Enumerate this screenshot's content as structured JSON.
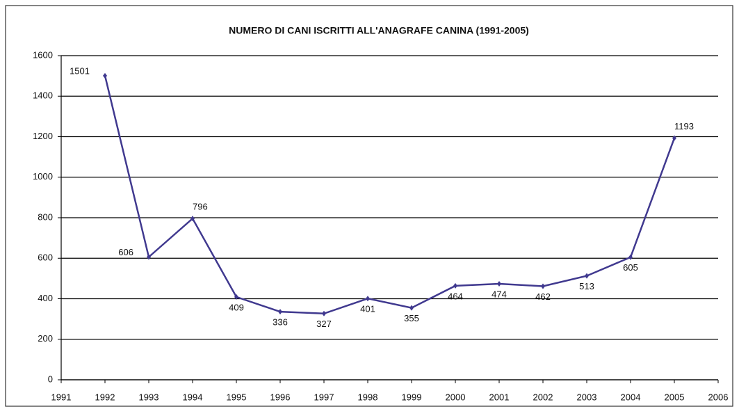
{
  "chart_data": {
    "type": "line",
    "title": "NUMERO DI CANI ISCRITTI ALL'ANAGRAFE CANINA (1991-2005)",
    "x": [
      1992,
      1993,
      1994,
      1995,
      1996,
      1997,
      1998,
      1999,
      2000,
      2001,
      2002,
      2003,
      2004,
      2005
    ],
    "series": [
      {
        "name": "Cani iscritti",
        "color": "#40398f",
        "values": [
          1501,
          606,
          796,
          409,
          336,
          327,
          401,
          355,
          464,
          474,
          462,
          513,
          605,
          1193
        ]
      }
    ],
    "xlim": [
      1991,
      2006
    ],
    "xticks": [
      1991,
      1992,
      1993,
      1994,
      1995,
      1996,
      1997,
      1998,
      1999,
      2000,
      2001,
      2002,
      2003,
      2004,
      2005,
      2006
    ],
    "ylim": [
      0,
      1600
    ],
    "yticks": [
      0,
      200,
      400,
      600,
      800,
      1000,
      1200,
      1400,
      1600
    ],
    "grid": true
  }
}
